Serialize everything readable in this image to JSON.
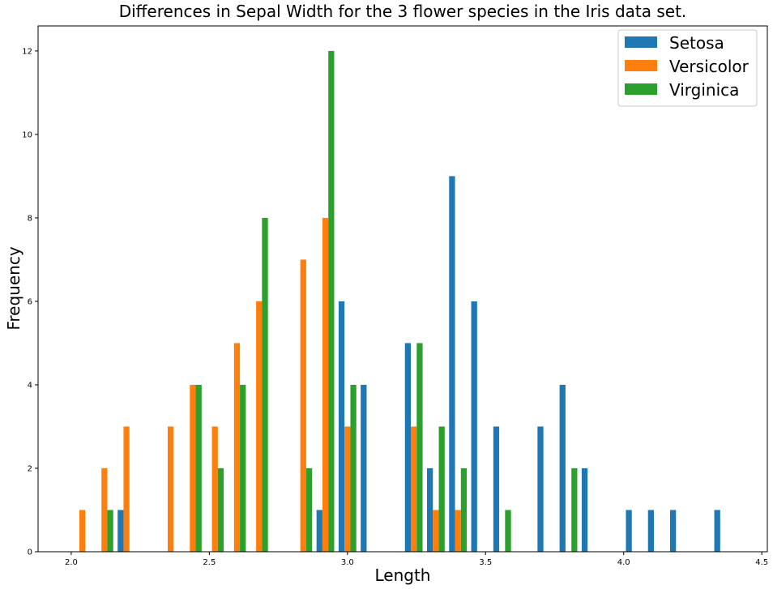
{
  "chart_data": {
    "type": "bar",
    "title": "Differences in Sepal Width for the 3 flower species in the Iris data set.",
    "xlabel": "Length",
    "ylabel": "Frequency",
    "xlim": [
      1.88,
      4.52
    ],
    "ylim": [
      0,
      12.6
    ],
    "xticks": [
      "2.0",
      "2.5",
      "3.0",
      "3.5",
      "4.0",
      "4.5"
    ],
    "yticks": [
      "0",
      "2",
      "4",
      "6",
      "8",
      "10",
      "12"
    ],
    "grid": false,
    "legend_position": "top-right",
    "bin_edges": [
      2.0,
      2.08,
      2.16,
      2.24,
      2.32,
      2.4,
      2.48,
      2.56,
      2.64,
      2.72,
      2.8,
      2.88,
      2.96,
      3.04,
      3.12,
      3.2,
      3.28,
      3.36,
      3.44,
      3.52,
      3.6,
      3.68,
      3.76,
      3.84,
      3.92,
      4.0,
      4.08,
      4.16,
      4.24,
      4.32,
      4.4
    ],
    "series": [
      {
        "name": "Setosa",
        "color": "#1f77b4",
        "values": [
          0,
          0,
          1,
          0,
          0,
          0,
          0,
          0,
          0,
          0,
          0,
          1,
          6,
          4,
          0,
          5,
          2,
          9,
          6,
          3,
          0,
          3,
          4,
          2,
          0,
          1,
          1,
          1,
          0,
          1
        ]
      },
      {
        "name": "Versicolor",
        "color": "#ff7f0e",
        "values": [
          1,
          2,
          3,
          0,
          3,
          4,
          3,
          5,
          6,
          0,
          7,
          8,
          3,
          0,
          0,
          3,
          1,
          1,
          0,
          0,
          0,
          0,
          0,
          0,
          0,
          0,
          0,
          0,
          0,
          0
        ]
      },
      {
        "name": "Virginica",
        "color": "#2ca02c",
        "values": [
          0,
          1,
          0,
          0,
          0,
          4,
          2,
          4,
          8,
          0,
          2,
          12,
          4,
          0,
          0,
          5,
          3,
          2,
          0,
          1,
          0,
          0,
          2,
          0,
          0,
          0,
          0,
          0,
          0,
          0
        ]
      }
    ]
  }
}
